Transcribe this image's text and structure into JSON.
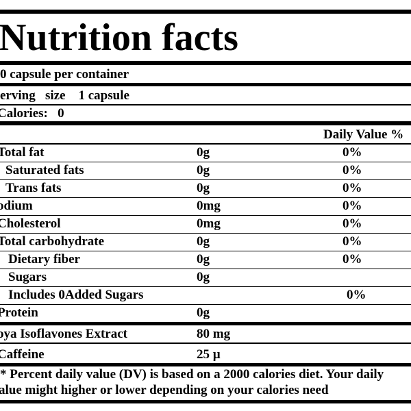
{
  "header": {
    "title": "Nutrition facts",
    "container": "0 capsule per container",
    "serving": "erving   size    1 capsule",
    "calories": "Calories:   0"
  },
  "table": {
    "dv_header": "Daily Value %",
    "rows": [
      {
        "label": "Total fat",
        "amount": "0g",
        "dv": "0%"
      },
      {
        "label": "Saturated fats",
        "amount": "0g",
        "dv": "0%"
      },
      {
        "label": "Trans fats",
        "amount": "0g",
        "dv": "0%"
      },
      {
        "label": "odium",
        "amount": "0mg",
        "dv": "0%"
      },
      {
        "label": "Cholesterol",
        "amount": "0mg",
        "dv": "0%"
      },
      {
        "label": "Total carbohydrate",
        "amount": "0g",
        "dv": "0%"
      },
      {
        "label": "Dietary fiber",
        "amount": "0g",
        "dv": "0%"
      },
      {
        "label": "Sugars",
        "amount": "0g"
      },
      {
        "label": "Includes 0Added Sugars",
        "dv": "0%"
      },
      {
        "label": "Protein",
        "amount": "0g"
      },
      {
        "label": "oya Isoflavones Extract",
        "amount": "80 mg"
      },
      {
        "label": "Caffeine",
        "amount": "25 µ"
      }
    ]
  },
  "footnote": [
    "* Percent daily value (DV) is based on a 2000 calories diet. Your daily",
    "alue might higher or lower depending on your calories need"
  ]
}
